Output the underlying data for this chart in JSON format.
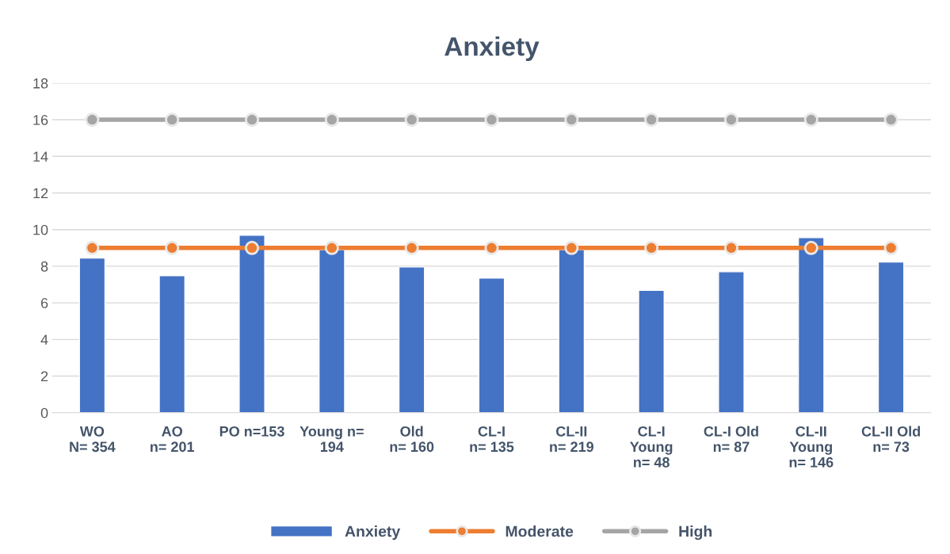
{
  "chart_data": {
    "type": "bar",
    "title": "Anxiety",
    "categories": [
      "WO\nN= 354",
      "AO\nn= 201",
      "PO n=153",
      "Young n=\n194",
      "Old\nn= 160",
      "CL-I\nn= 135",
      "CL-II\nn= 219",
      "CL-I\nYoung\nn= 48",
      "CL-I Old\nn= 87",
      "CL-II\nYoung\nn= 146",
      "CL-II Old\nn= 73"
    ],
    "series": [
      {
        "name": "Anxiety",
        "color": "#4472c4",
        "values": [
          8.45,
          7.48,
          9.69,
          8.9,
          7.96,
          7.35,
          8.9,
          6.68,
          7.7,
          9.56,
          8.23
        ]
      },
      {
        "name": "Moderate",
        "type": "line",
        "color": "#ed7d31",
        "marker": "circle",
        "values": [
          9,
          9,
          9,
          9,
          9,
          9,
          9,
          9,
          9,
          9,
          9
        ]
      },
      {
        "name": "High",
        "type": "line",
        "color": "#a5a5a5",
        "marker": "circle",
        "values": [
          16,
          16,
          16,
          16,
          16,
          16,
          16,
          16,
          16,
          16,
          16
        ]
      }
    ],
    "ylim": [
      0,
      18
    ],
    "yticks": [
      0,
      2,
      4,
      6,
      8,
      10,
      12,
      14,
      16,
      18
    ],
    "grid": "y",
    "legend": "bottom"
  }
}
